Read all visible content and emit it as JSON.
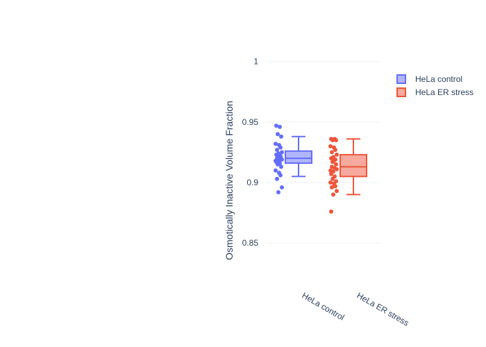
{
  "chart_data": {
    "type": "box",
    "title": "",
    "xlabel": "",
    "ylabel": "Osmotically Inactive Volume Fraction",
    "ylim": [
      0.83,
      1.005
    ],
    "yticks": [
      0.85,
      0.9,
      0.95,
      1
    ],
    "ytick_labels": [
      "0.85",
      "0.9",
      "0.95",
      "1"
    ],
    "grid": true,
    "legend_position": "top-right",
    "categories": [
      "HeLa control",
      "HeLa ER stress"
    ],
    "series": [
      {
        "name": "HeLa control",
        "color": "#636efa",
        "fill": "rgba(99,110,250,0.5)",
        "min": 0.905,
        "q1": 0.916,
        "median": 0.92,
        "q3": 0.926,
        "max": 0.938,
        "points": [
          0.947,
          0.946,
          0.94,
          0.938,
          0.932,
          0.931,
          0.929,
          0.927,
          0.925,
          0.924,
          0.923,
          0.922,
          0.921,
          0.921,
          0.92,
          0.92,
          0.919,
          0.919,
          0.918,
          0.918,
          0.917,
          0.916,
          0.915,
          0.913,
          0.91,
          0.908,
          0.906,
          0.903,
          0.896,
          0.892
        ]
      },
      {
        "name": "HeLa ER stress",
        "color": "#ef553b",
        "fill": "rgba(239,85,59,0.5)",
        "min": 0.89,
        "q1": 0.905,
        "median": 0.913,
        "q3": 0.923,
        "max": 0.936,
        "points": [
          0.936,
          0.936,
          0.935,
          0.935,
          0.93,
          0.929,
          0.927,
          0.925,
          0.923,
          0.921,
          0.92,
          0.919,
          0.918,
          0.917,
          0.915,
          0.913,
          0.912,
          0.911,
          0.91,
          0.909,
          0.907,
          0.905,
          0.903,
          0.901,
          0.9,
          0.899,
          0.897,
          0.896,
          0.893,
          0.89,
          0.876
        ]
      }
    ]
  }
}
